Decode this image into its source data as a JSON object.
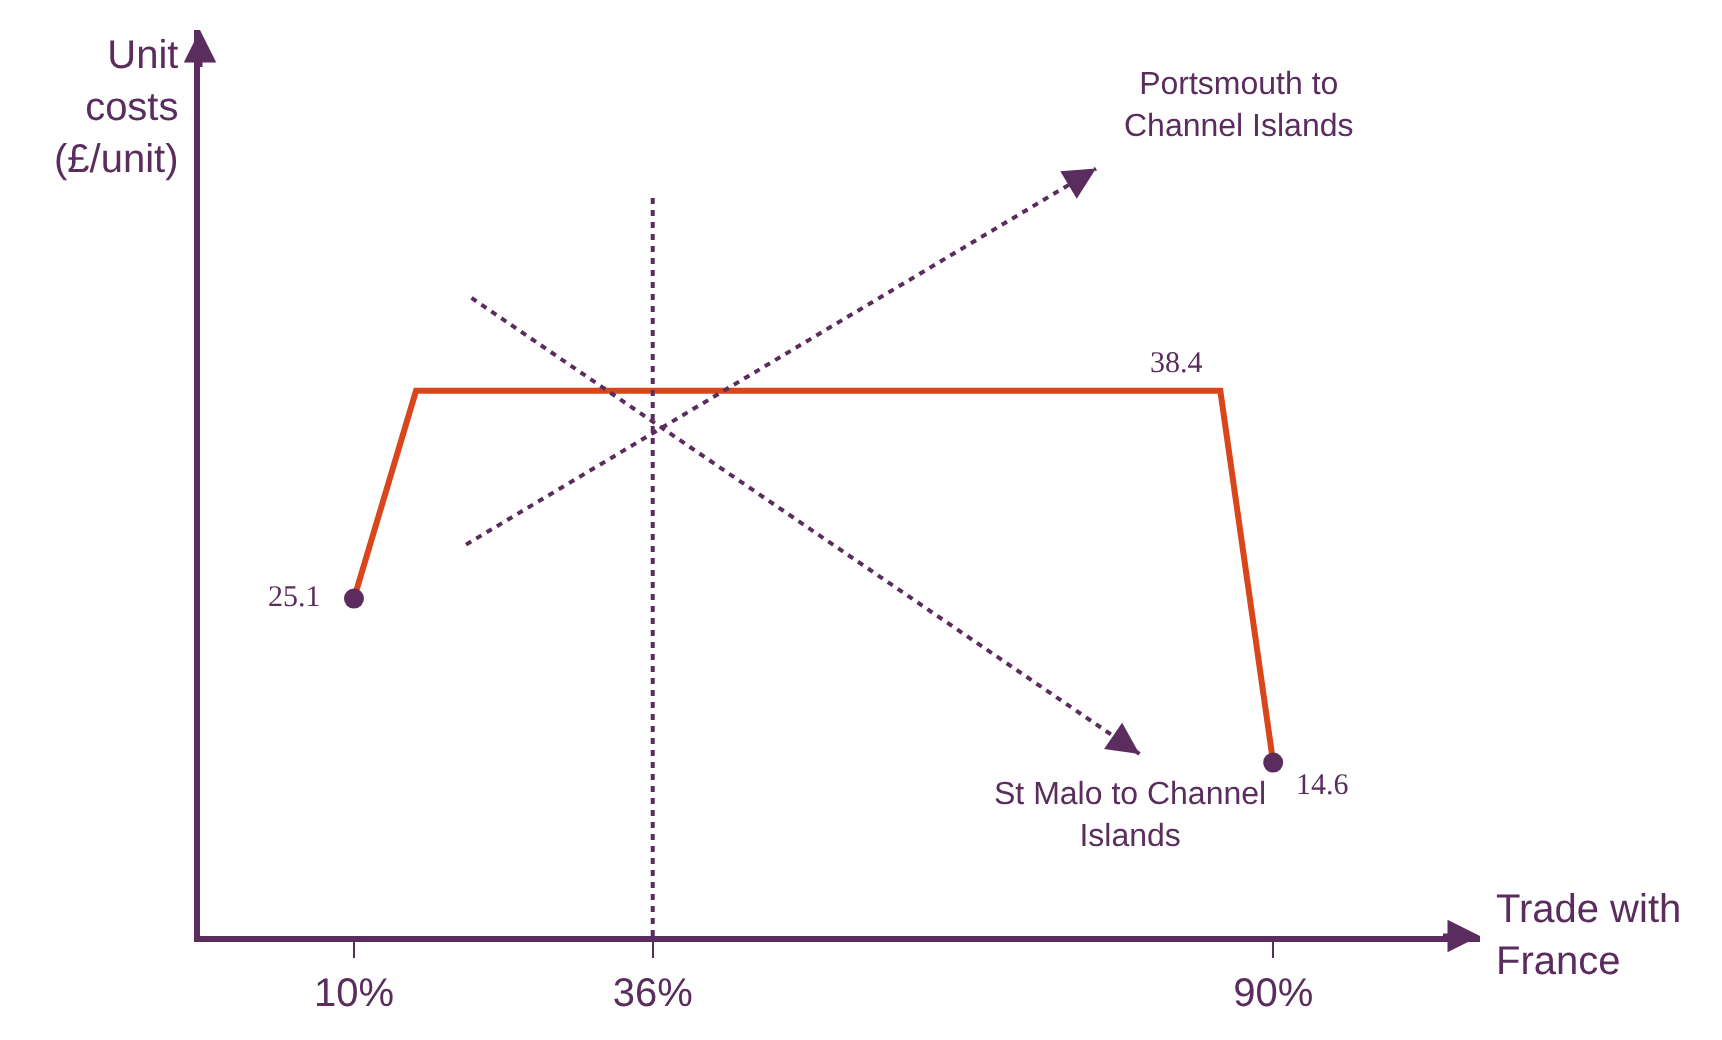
{
  "chart_data": {
    "type": "line",
    "xlabel": "Trade with France",
    "ylabel": "Unit costs (£/unit)",
    "xlim": [
      -3.4,
      108
    ],
    "xticks": [
      {
        "value": 10,
        "label": "10%"
      },
      {
        "value": 36,
        "label": "36%"
      },
      {
        "value": 90,
        "label": "90%"
      }
    ],
    "ylim": [
      3.5,
      61.5
    ],
    "legend": false,
    "tick_labels": "x",
    "ref_lines": [
      {
        "axis": "x",
        "value": 36,
        "label": null,
        "color": "#5b2c5e",
        "line_style": "dotted"
      }
    ],
    "series": [
      {
        "color": "#d9461b",
        "x": [
          10,
          15.4,
          85.4,
          90
        ],
        "values": [
          25.1,
          38.4,
          38.4,
          14.6
        ],
        "value_labels": [
          "25.1",
          null,
          "38.4",
          "14.6"
        ],
        "marker": "circle",
        "line_style": "solid"
      }
    ],
    "annotations": [
      "Portsmouth to Channel Islands",
      "St Malo to Channel Islands"
    ]
  }
}
